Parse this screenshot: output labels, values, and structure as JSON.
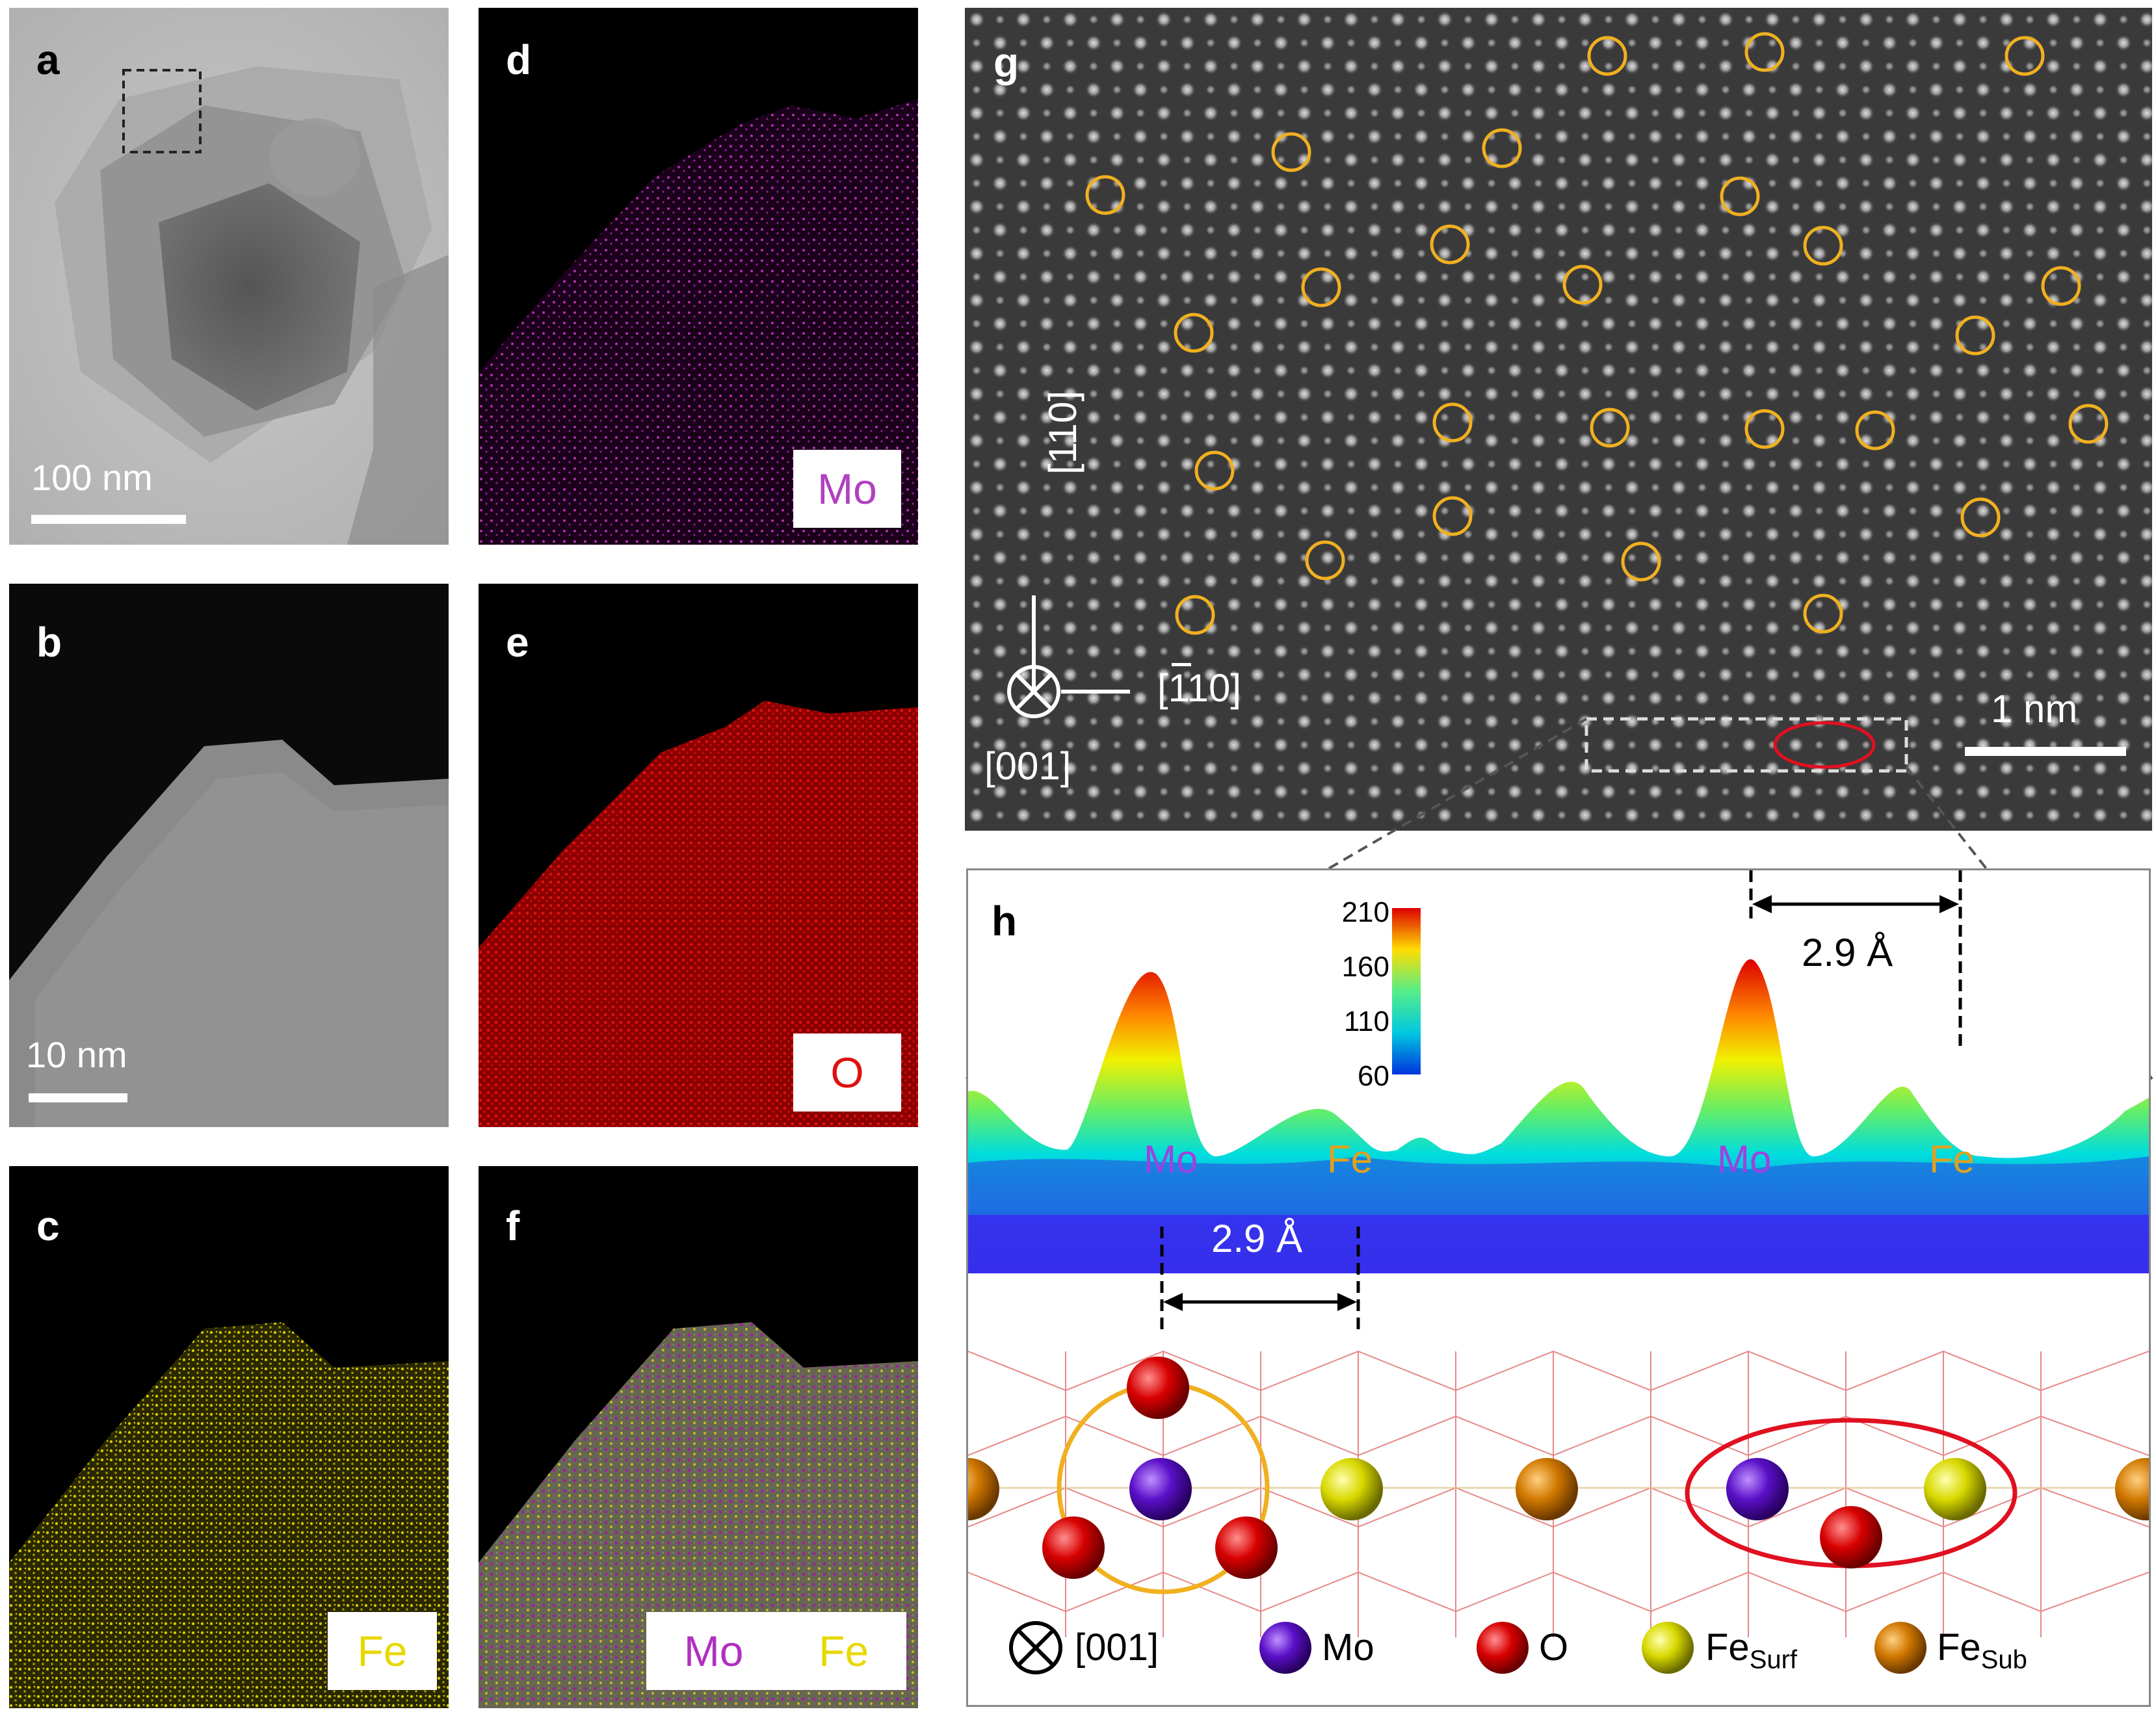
{
  "panels": {
    "a": {
      "label": "a",
      "scalebar": "100 nm"
    },
    "b": {
      "label": "b",
      "scalebar": "10 nm"
    },
    "c": {
      "label": "c",
      "tag": "Fe"
    },
    "d": {
      "label": "d",
      "tag": "Mo"
    },
    "e": {
      "label": "e",
      "tag": "O"
    },
    "f": {
      "label": "f",
      "tag_mo": "Mo",
      "tag_fe": "Fe"
    },
    "g": {
      "label": "g",
      "scalebar": "1 nm",
      "axis_110": "[110]",
      "axis_m110": "[110]",
      "axis_001": "[001]"
    },
    "h": {
      "label": "h",
      "colorbar_ticks": [
        "210",
        "160",
        "110",
        "60"
      ],
      "distance_top": "2.9 Å",
      "distance_bottom": "2.9 Å",
      "peak_labels": [
        "Mo",
        "Fe",
        "Mo",
        "Fe"
      ],
      "legend": {
        "axis": "[001]",
        "mo": "Mo",
        "o": "O",
        "fe_surf": "Fe",
        "fe_surf_sub": "Surf",
        "fe_sub": "Fe",
        "fe_sub_sub": "Sub"
      }
    }
  },
  "colors": {
    "mo": "#cc33cc",
    "o": "#e01010",
    "fe": "#f0e000",
    "circle": "#f0b020",
    "highlight": "#e01020"
  }
}
